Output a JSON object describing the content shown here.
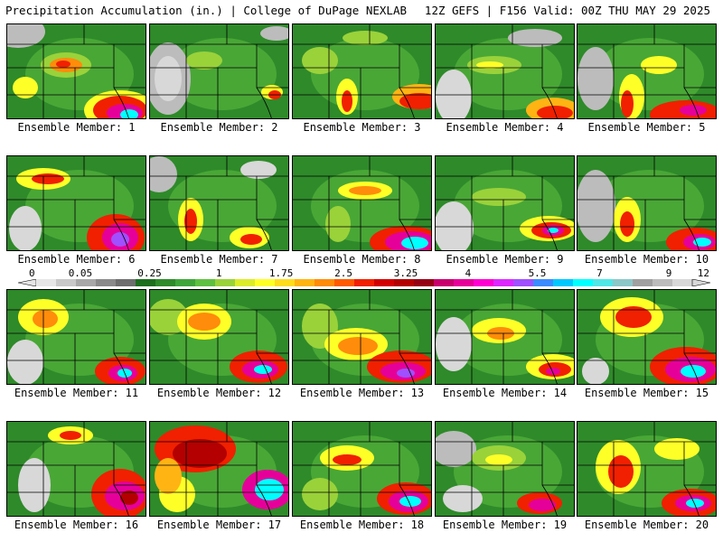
{
  "header": {
    "left_title": "Precipitation Accumulation (in.) | College of DuPage NEXLAB",
    "right_title": "12Z GEFS | F156 Valid: 00Z THU MAY 29 2025"
  },
  "colorbar": {
    "labels": [
      "0",
      "0.05",
      "0.25",
      "1",
      "1.75",
      "2.5",
      "3.25",
      "4",
      "5.5",
      "7",
      "9",
      "12"
    ],
    "colors": [
      "#e6e6e6",
      "#c8c8c8",
      "#a8a8a8",
      "#8a8a8a",
      "#6e6e6e",
      "#1e6e1e",
      "#2f8a2a",
      "#3fa53a",
      "#5ec040",
      "#9ad23a",
      "#dcec2a",
      "#ffff28",
      "#ffdc1e",
      "#ffb414",
      "#ff8c0a",
      "#ff5a00",
      "#f02000",
      "#d20000",
      "#b40000",
      "#960014",
      "#c8006e",
      "#e6009a",
      "#ff00d2",
      "#dc28ff",
      "#a050ff",
      "#3c8cff",
      "#00c8ff",
      "#00ffff",
      "#50e6e6",
      "#8cc8c8",
      "#a0a0a0",
      "#bcbcbc",
      "#d8d8d8"
    ]
  },
  "panels": [
    {
      "label": "Ensemble Member: 1"
    },
    {
      "label": "Ensemble Member: 2"
    },
    {
      "label": "Ensemble Member: 3"
    },
    {
      "label": "Ensemble Member: 4"
    },
    {
      "label": "Ensemble Member: 5"
    },
    {
      "label": "Ensemble Member: 6"
    },
    {
      "label": "Ensemble Member: 7"
    },
    {
      "label": "Ensemble Member: 8"
    },
    {
      "label": "Ensemble Member: 9"
    },
    {
      "label": "Ensemble Member: 10"
    },
    {
      "label": "Ensemble Member: 11"
    },
    {
      "label": "Ensemble Member: 12"
    },
    {
      "label": "Ensemble Member: 13"
    },
    {
      "label": "Ensemble Member: 14"
    },
    {
      "label": "Ensemble Member: 15"
    },
    {
      "label": "Ensemble Member: 16"
    },
    {
      "label": "Ensemble Member: 17"
    },
    {
      "label": "Ensemble Member: 18"
    },
    {
      "label": "Ensemble Member: 19"
    },
    {
      "label": "Ensemble Member: 20"
    }
  ]
}
